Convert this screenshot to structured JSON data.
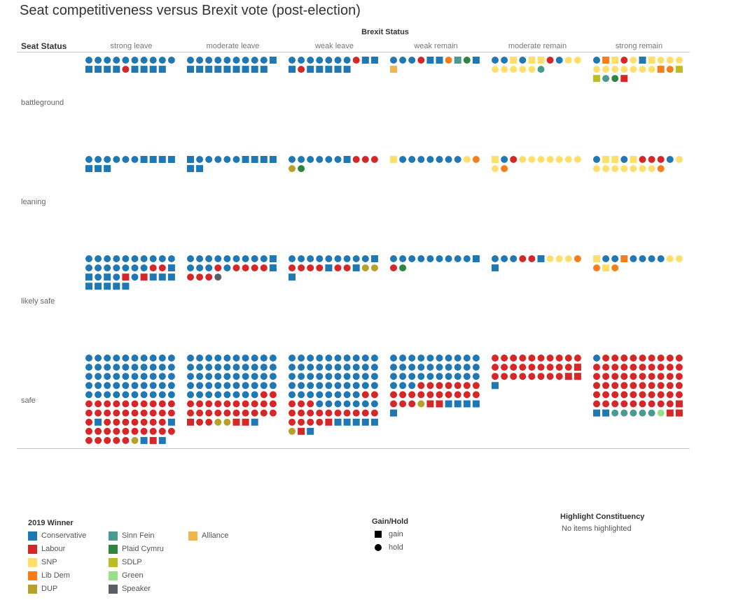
{
  "title": "Seat competitiveness versus Brexit vote (post-election)",
  "header": {
    "column_group_label": "Brexit Status",
    "row_group_label": "Seat Status"
  },
  "chart_data": {
    "type": "unit-dot-matrix",
    "columns": [
      "strong leave",
      "moderate leave",
      "weak leave",
      "weak remain",
      "moderate remain",
      "strong remain"
    ],
    "rows": [
      "battleground",
      "leaning",
      "likely safe",
      "safe"
    ],
    "encoding": {
      "shape": "Gain/Hold (square = gain, circle = hold)",
      "color": "2019 Winner",
      "item_notation": "party code + shape: c = circle (hold), s = square (gain)"
    },
    "party_codes": {
      "C": "Conservative",
      "L": "Labour",
      "S": "SNP",
      "D": "Lib Dem",
      "U": "DUP",
      "F": "Sinn Fein",
      "P": "Plaid Cymru",
      "E": "SDLP",
      "G": "Green",
      "K": "Speaker",
      "A": "Alliance"
    },
    "colors": {
      "C": "#1f77b4",
      "L": "#d62728",
      "S": "#ffdf6b",
      "D": "#f47e1b",
      "U": "#b5a22b",
      "F": "#4a9a8f",
      "P": "#2e8540",
      "E": "#bcbd22",
      "G": "#98df8a",
      "K": "#595f66",
      "A": "#f0b450"
    },
    "cells": {
      "battleground": [
        [
          "Cc",
          "Cc",
          "Cc",
          "Cc",
          "Cc",
          "Cc",
          "Cc",
          "Cc",
          "Cc",
          "Cc",
          "Cs",
          "Cs",
          "Cs",
          "Cs",
          "Lc",
          "Cs",
          "Cs",
          "Cs",
          "Cs"
        ],
        [
          "Cc",
          "Cc",
          "Cc",
          "Cc",
          "Cc",
          "Cc",
          "Cc",
          "Cc",
          "Cc",
          "Cs",
          "Cs",
          "Cs",
          "Cs",
          "Cs",
          "Cs",
          "Cs",
          "Cs",
          "Cs",
          "Cs"
        ],
        [
          "Cc",
          "Cc",
          "Cc",
          "Cc",
          "Cc",
          "Cc",
          "Cc",
          "Lc",
          "Cs",
          "Cs",
          "Cs",
          "Lc",
          "Cs",
          "Cs",
          "Cs",
          "Cs",
          "Cs"
        ],
        [
          "Cc",
          "Cc",
          "Cc",
          "Lc",
          "Cs",
          "Cs",
          "Dc",
          "Fs",
          "Pc",
          "Cs",
          "As"
        ],
        [
          "Cc",
          "Cc",
          "Ss",
          "Cc",
          "Ss",
          "Ss",
          "Lc",
          "Cc",
          "Sc",
          "Sc",
          "Sc",
          "Sc",
          "Sc",
          "Sc",
          "Sc",
          "Fc"
        ],
        [
          "Cc",
          "Ds",
          "Ss",
          "Lc",
          "Sc",
          "Cs",
          "Ss",
          "Sc",
          "Sc",
          "Sc",
          "Sc",
          "Sc",
          "Sc",
          "Sc",
          "Sc",
          "Sc",
          "Sc",
          "Ds",
          "Dc",
          "Es",
          "Es",
          "Fc",
          "Pc",
          "Ls"
        ]
      ],
      "leaning": [
        [
          "Cc",
          "Cc",
          "Cc",
          "Cc",
          "Cc",
          "Cc",
          "Cs",
          "Cs",
          "Cs",
          "Cs",
          "Cs",
          "Cs",
          "Cs"
        ],
        [
          "Cs",
          "Cc",
          "Cc",
          "Cc",
          "Cc",
          "Cc",
          "Cs",
          "Cs",
          "Cs",
          "Cs",
          "Cs",
          "Cs"
        ],
        [
          "Cc",
          "Cc",
          "Cc",
          "Cc",
          "Cc",
          "Cc",
          "Cs",
          "Lc",
          "Lc",
          "Lc",
          "Uc",
          "Pc"
        ],
        [
          "Ss",
          "Cc",
          "Cc",
          "Cc",
          "Cc",
          "Cc",
          "Cc",
          "Cc",
          "Sc",
          "Dc"
        ],
        [
          "Ss",
          "Cc",
          "Lc",
          "Sc",
          "Sc",
          "Sc",
          "Sc",
          "Sc",
          "Sc",
          "Sc",
          "Sc",
          "Dc"
        ],
        [
          "Cc",
          "Ss",
          "Ss",
          "Cc",
          "Ss",
          "Lc",
          "Lc",
          "Lc",
          "Cc",
          "Sc",
          "Sc",
          "Sc",
          "Sc",
          "Sc",
          "Sc",
          "Sc",
          "Sc",
          "Dc"
        ]
      ],
      "likely safe": [
        [
          "Cc",
          "Cc",
          "Cc",
          "Cc",
          "Cc",
          "Cc",
          "Cc",
          "Cc",
          "Cc",
          "Cc",
          "Cc",
          "Cc",
          "Cc",
          "Cc",
          "Cc",
          "Cc",
          "Cc",
          "Lc",
          "Lc",
          "Cs",
          "Cs",
          "Cc",
          "Cs",
          "Cc",
          "Ls",
          "Cc",
          "Ls",
          "Cs",
          "Cs",
          "Cs",
          "Cs",
          "Cs",
          "Cs",
          "Cs",
          "Cs"
        ],
        [
          "Cc",
          "Cc",
          "Cc",
          "Cc",
          "Cc",
          "Cc",
          "Cc",
          "Cc",
          "Cc",
          "Cs",
          "Cc",
          "Cc",
          "Cc",
          "Lc",
          "Cc",
          "Lc",
          "Lc",
          "Lc",
          "Lc",
          "Cs",
          "Lc",
          "Lc",
          "Lc",
          "Kc"
        ],
        [
          "Cc",
          "Cc",
          "Cc",
          "Cc",
          "Cc",
          "Cc",
          "Cc",
          "Cc",
          "Cc",
          "Cs",
          "Lc",
          "Lc",
          "Lc",
          "Lc",
          "Cs",
          "Lc",
          "Lc",
          "Cs",
          "Uc",
          "Uc",
          "Cs"
        ],
        [
          "Cc",
          "Cc",
          "Cc",
          "Cc",
          "Cc",
          "Cc",
          "Cc",
          "Cc",
          "Cc",
          "Cs",
          "Lc",
          "Pc"
        ],
        [
          "Cc",
          "Cc",
          "Cc",
          "Lc",
          "Lc",
          "Cs",
          "Sc",
          "Sc",
          "Sc",
          "Dc",
          "Cs"
        ],
        [
          "Ss",
          "Cc",
          "Cc",
          "Ds",
          "Cc",
          "Cc",
          "Cc",
          "Cc",
          "Sc",
          "Sc",
          "Dc",
          "Ss",
          "Dc"
        ]
      ],
      "safe": [
        [
          "Cc",
          "Cc",
          "Cc",
          "Cc",
          "Cc",
          "Cc",
          "Cc",
          "Cc",
          "Cc",
          "Cc",
          "Cc",
          "Cc",
          "Cc",
          "Cc",
          "Cc",
          "Cc",
          "Cc",
          "Cc",
          "Cc",
          "Cc",
          "Cc",
          "Cc",
          "Cc",
          "Cc",
          "Cc",
          "Cc",
          "Cc",
          "Cc",
          "Cc",
          "Cc",
          "Cc",
          "Cc",
          "Cc",
          "Cc",
          "Cc",
          "Cc",
          "Cc",
          "Cc",
          "Cc",
          "Cc",
          "Cc",
          "Cc",
          "Cc",
          "Cc",
          "Cc",
          "Cc",
          "Cc",
          "Cc",
          "Cc",
          "Cc",
          "Lc",
          "Lc",
          "Lc",
          "Lc",
          "Lc",
          "Lc",
          "Lc",
          "Lc",
          "Lc",
          "Lc",
          "Lc",
          "Lc",
          "Lc",
          "Lc",
          "Lc",
          "Lc",
          "Lc",
          "Lc",
          "Lc",
          "Lc",
          "Lc",
          "Cs",
          "Lc",
          "Lc",
          "Lc",
          "Lc",
          "Lc",
          "Lc",
          "Lc",
          "Cs",
          "Lc",
          "Lc",
          "Lc",
          "Lc",
          "Lc",
          "Lc",
          "Lc",
          "Lc",
          "Lc",
          "Lc",
          "Lc",
          "Lc",
          "Lc",
          "Lc",
          "Lc",
          "Uc",
          "Cs",
          "Ls",
          "Cs"
        ],
        [
          "Cc",
          "Cc",
          "Cc",
          "Cc",
          "Cc",
          "Cc",
          "Cc",
          "Cc",
          "Cc",
          "Cc",
          "Cc",
          "Cc",
          "Cc",
          "Cc",
          "Cc",
          "Cc",
          "Cc",
          "Cc",
          "Cc",
          "Cc",
          "Cc",
          "Cc",
          "Cc",
          "Cc",
          "Cc",
          "Cc",
          "Cc",
          "Cc",
          "Cc",
          "Cc",
          "Cc",
          "Cc",
          "Cc",
          "Cc",
          "Cc",
          "Cc",
          "Cc",
          "Cc",
          "Cc",
          "Cc",
          "Cc",
          "Cc",
          "Cc",
          "Cc",
          "Cc",
          "Cc",
          "Cc",
          "Cc",
          "Lc",
          "Lc",
          "Lc",
          "Lc",
          "Lc",
          "Lc",
          "Lc",
          "Lc",
          "Lc",
          "Lc",
          "Lc",
          "Lc",
          "Lc",
          "Lc",
          "Lc",
          "Lc",
          "Lc",
          "Lc",
          "Lc",
          "Lc",
          "Lc",
          "Lc",
          "Ls",
          "Lc",
          "Lc",
          "Uc",
          "Uc",
          "Ls",
          "Ls",
          "Cs"
        ],
        [
          "Cc",
          "Cc",
          "Cc",
          "Cc",
          "Cc",
          "Cc",
          "Cc",
          "Cc",
          "Cc",
          "Cc",
          "Cc",
          "Cc",
          "Cc",
          "Cc",
          "Cc",
          "Cc",
          "Cc",
          "Cc",
          "Cc",
          "Cc",
          "Cc",
          "Cc",
          "Cc",
          "Cc",
          "Cc",
          "Cc",
          "Cc",
          "Cc",
          "Cc",
          "Cc",
          "Cc",
          "Cc",
          "Cc",
          "Cc",
          "Cc",
          "Cc",
          "Cc",
          "Cc",
          "Cc",
          "Cc",
          "Cc",
          "Cc",
          "Cc",
          "Cc",
          "Cc",
          "Cc",
          "Cc",
          "Cc",
          "Lc",
          "Lc",
          "Lc",
          "Lc",
          "Lc",
          "Cc",
          "Cc",
          "Cc",
          "Cc",
          "Cc",
          "Cc",
          "Cc",
          "Lc",
          "Lc",
          "Lc",
          "Lc",
          "Lc",
          "Lc",
          "Lc",
          "Lc",
          "Lc",
          "Lc",
          "Lc",
          "Lc",
          "Lc",
          "Lc",
          "Ls",
          "Cs",
          "Cs",
          "Cs",
          "Cs",
          "Cs",
          "Uc",
          "Ls",
          "Cs"
        ],
        [
          "Cc",
          "Cc",
          "Cc",
          "Cc",
          "Cc",
          "Cc",
          "Cc",
          "Cc",
          "Cc",
          "Cc",
          "Cc",
          "Cc",
          "Cc",
          "Cc",
          "Cc",
          "Cc",
          "Cc",
          "Cc",
          "Cc",
          "Cc",
          "Cc",
          "Cc",
          "Cc",
          "Cc",
          "Cc",
          "Cc",
          "Cc",
          "Cc",
          "Cc",
          "Cc",
          "Cc",
          "Cc",
          "Cc",
          "Lc",
          "Lc",
          "Lc",
          "Lc",
          "Lc",
          "Lc",
          "Lc",
          "Lc",
          "Lc",
          "Lc",
          "Lc",
          "Lc",
          "Lc",
          "Lc",
          "Lc",
          "Lc",
          "Lc",
          "Lc",
          "Lc",
          "Lc",
          "Uc",
          "Ls",
          "Ls",
          "Cs",
          "Cs",
          "Cs",
          "Cs",
          "Cs"
        ],
        [
          "Lc",
          "Lc",
          "Lc",
          "Lc",
          "Lc",
          "Lc",
          "Lc",
          "Lc",
          "Lc",
          "Lc",
          "Lc",
          "Lc",
          "Lc",
          "Lc",
          "Lc",
          "Lc",
          "Lc",
          "Lc",
          "Lc",
          "Ls",
          "Lc",
          "Lc",
          "Lc",
          "Lc",
          "Lc",
          "Lc",
          "Lc",
          "Lc",
          "Ls",
          "Ls",
          "Cs"
        ],
        [
          "Cc",
          "Lc",
          "Lc",
          "Lc",
          "Lc",
          "Lc",
          "Lc",
          "Lc",
          "Lc",
          "Lc",
          "Lc",
          "Lc",
          "Lc",
          "Lc",
          "Lc",
          "Lc",
          "Lc",
          "Lc",
          "Lc",
          "Lc",
          "Lc",
          "Lc",
          "Lc",
          "Lc",
          "Lc",
          "Lc",
          "Lc",
          "Lc",
          "Lc",
          "Lc",
          "Lc",
          "Lc",
          "Lc",
          "Lc",
          "Lc",
          "Lc",
          "Lc",
          "Lc",
          "Lc",
          "Lc",
          "Lc",
          "Lc",
          "Lc",
          "Lc",
          "Lc",
          "Lc",
          "Lc",
          "Lc",
          "Lc",
          "Lc",
          "Lc",
          "Lc",
          "Lc",
          "Lc",
          "Lc",
          "Lc",
          "Lc",
          "Lc",
          "Lc",
          "Ls",
          "Cs",
          "Cs",
          "Fc",
          "Fc",
          "Fc",
          "Fc",
          "Fc",
          "Gc",
          "Ls",
          "Ls"
        ]
      ]
    }
  },
  "legend_winner": {
    "title": "2019 Winner",
    "items": [
      {
        "label": "Conservative",
        "code": "C"
      },
      {
        "label": "Labour",
        "code": "L"
      },
      {
        "label": "SNP",
        "code": "S"
      },
      {
        "label": "Lib Dem",
        "code": "D"
      },
      {
        "label": "DUP",
        "code": "U"
      },
      {
        "label": "Sinn Fein",
        "code": "F"
      },
      {
        "label": "Plaid Cymru",
        "code": "P"
      },
      {
        "label": "SDLP",
        "code": "E"
      },
      {
        "label": "Green",
        "code": "G"
      },
      {
        "label": "Speaker",
        "code": "K"
      },
      {
        "label": "Alliance",
        "code": "A"
      }
    ]
  },
  "legend_shape": {
    "title": "Gain/Hold",
    "gain_label": "gain",
    "hold_label": "hold"
  },
  "highlight": {
    "title": "Highlight Constituency",
    "value": "No items highlighted"
  }
}
